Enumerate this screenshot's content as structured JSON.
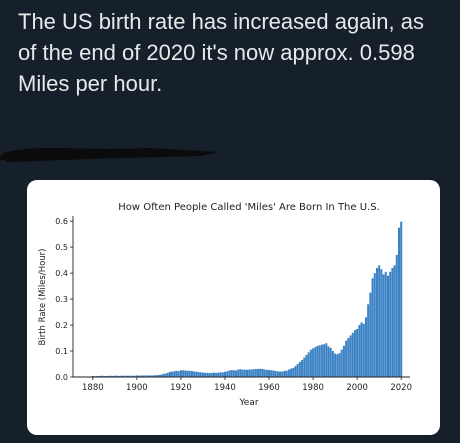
{
  "tweet": {
    "text": "The US birth rate has increased again, as of the end of 2020 it's now approx. 0.598 Miles per hour."
  },
  "redaction": {
    "color": "#0b0b0b"
  },
  "chart_data": {
    "type": "bar",
    "title": "How Often People Called 'Miles' Are Born In The U.S.",
    "xlabel": "Year",
    "ylabel": "Birth Rate (Miles/Hour)",
    "xlim": [
      1871,
      2024
    ],
    "ylim": [
      0.0,
      0.62
    ],
    "xticks": [
      1880,
      1900,
      1920,
      1940,
      1960,
      1980,
      2000,
      2020
    ],
    "yticks": [
      0.0,
      0.1,
      0.2,
      0.3,
      0.4,
      0.5,
      0.6
    ],
    "ytick_labels": [
      "0.0",
      "0.1",
      "0.2",
      "0.3",
      "0.4",
      "0.5",
      "0.6"
    ],
    "grid": false,
    "bar_color": "#3b82c4",
    "x": [
      1880,
      1881,
      1882,
      1883,
      1884,
      1885,
      1886,
      1887,
      1888,
      1889,
      1890,
      1891,
      1892,
      1893,
      1894,
      1895,
      1896,
      1897,
      1898,
      1899,
      1900,
      1901,
      1902,
      1903,
      1904,
      1905,
      1906,
      1907,
      1908,
      1909,
      1910,
      1911,
      1912,
      1913,
      1914,
      1915,
      1916,
      1917,
      1918,
      1919,
      1920,
      1921,
      1922,
      1923,
      1924,
      1925,
      1926,
      1927,
      1928,
      1929,
      1930,
      1931,
      1932,
      1933,
      1934,
      1935,
      1936,
      1937,
      1938,
      1939,
      1940,
      1941,
      1942,
      1943,
      1944,
      1945,
      1946,
      1947,
      1948,
      1949,
      1950,
      1951,
      1952,
      1953,
      1954,
      1955,
      1956,
      1957,
      1958,
      1959,
      1960,
      1961,
      1962,
      1963,
      1964,
      1965,
      1966,
      1967,
      1968,
      1969,
      1970,
      1971,
      1972,
      1973,
      1974,
      1975,
      1976,
      1977,
      1978,
      1979,
      1980,
      1981,
      1982,
      1983,
      1984,
      1985,
      1986,
      1987,
      1988,
      1989,
      1990,
      1991,
      1992,
      1993,
      1994,
      1995,
      1996,
      1997,
      1998,
      1999,
      2000,
      2001,
      2002,
      2003,
      2004,
      2005,
      2006,
      2007,
      2008,
      2009,
      2010,
      2011,
      2012,
      2013,
      2014,
      2015,
      2016,
      2017,
      2018,
      2019,
      2020
    ],
    "values": [
      0.004,
      0.003,
      0.004,
      0.004,
      0.005,
      0.004,
      0.004,
      0.004,
      0.005,
      0.004,
      0.005,
      0.005,
      0.004,
      0.005,
      0.005,
      0.005,
      0.005,
      0.005,
      0.005,
      0.005,
      0.006,
      0.005,
      0.006,
      0.006,
      0.006,
      0.006,
      0.006,
      0.006,
      0.007,
      0.007,
      0.008,
      0.009,
      0.012,
      0.013,
      0.016,
      0.02,
      0.021,
      0.022,
      0.024,
      0.023,
      0.026,
      0.026,
      0.025,
      0.024,
      0.024,
      0.023,
      0.021,
      0.021,
      0.019,
      0.018,
      0.017,
      0.016,
      0.016,
      0.015,
      0.016,
      0.017,
      0.016,
      0.017,
      0.018,
      0.018,
      0.02,
      0.022,
      0.025,
      0.027,
      0.026,
      0.025,
      0.029,
      0.03,
      0.028,
      0.028,
      0.028,
      0.029,
      0.029,
      0.03,
      0.031,
      0.031,
      0.032,
      0.031,
      0.029,
      0.028,
      0.027,
      0.026,
      0.025,
      0.023,
      0.022,
      0.021,
      0.021,
      0.024,
      0.024,
      0.029,
      0.032,
      0.035,
      0.042,
      0.05,
      0.058,
      0.065,
      0.075,
      0.085,
      0.095,
      0.105,
      0.11,
      0.115,
      0.12,
      0.122,
      0.125,
      0.126,
      0.13,
      0.118,
      0.112,
      0.1,
      0.09,
      0.088,
      0.092,
      0.105,
      0.12,
      0.14,
      0.15,
      0.16,
      0.17,
      0.18,
      0.185,
      0.2,
      0.21,
      0.205,
      0.23,
      0.28,
      0.325,
      0.38,
      0.4,
      0.42,
      0.43,
      0.415,
      0.395,
      0.405,
      0.39,
      0.405,
      0.42,
      0.43,
      0.47,
      0.575,
      0.598
    ]
  }
}
